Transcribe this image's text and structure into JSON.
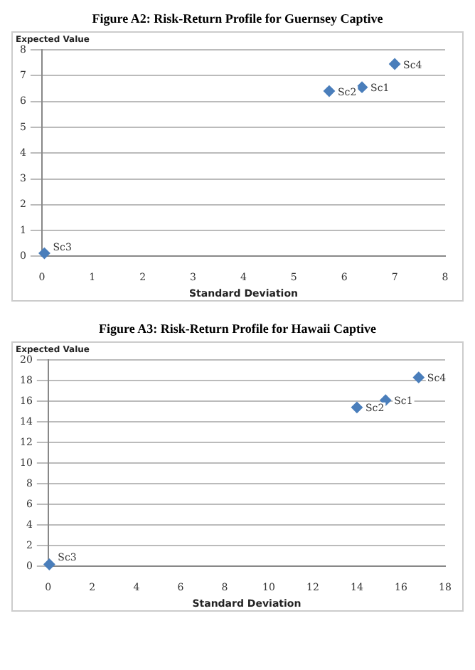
{
  "chart_data": [
    {
      "type": "scatter",
      "title": "Figure A2: Risk-Return Profile for Guernsey Captive",
      "xlabel": "Standard Deviation",
      "ylabel": "Expected Value",
      "x": [
        6.35,
        5.7,
        0.05,
        7.0
      ],
      "values": [
        6.55,
        6.4,
        0.12,
        7.45
      ],
      "color": "#4a7ebb",
      "marker": "diamond",
      "xlim": [
        0,
        8
      ],
      "xticks": [
        0,
        1,
        2,
        3,
        4,
        5,
        6,
        7,
        8
      ],
      "ylim": [
        0,
        8
      ],
      "yticks": [
        0,
        1,
        2,
        3,
        4,
        5,
        6,
        7,
        8
      ],
      "grid": "y",
      "annotations": [
        {
          "text": "Sc1",
          "x": 6.35,
          "y": 6.55
        },
        {
          "text": "Sc2",
          "x": 5.7,
          "y": 6.4
        },
        {
          "text": "Sc3",
          "x": 0.05,
          "y": 0.12
        },
        {
          "text": "Sc4",
          "x": 7.0,
          "y": 7.45
        }
      ]
    },
    {
      "type": "scatter",
      "title": "Figure A3: Risk-Return Profile for Hawaii Captive",
      "xlabel": "Standard Deviation",
      "ylabel": "Expected Value",
      "x": [
        15.3,
        14.0,
        0.05,
        16.8
      ],
      "values": [
        16.1,
        15.4,
        0.2,
        18.3
      ],
      "color": "#4a7ebb",
      "marker": "diamond",
      "xlim": [
        0,
        18
      ],
      "xticks": [
        0,
        2,
        4,
        6,
        8,
        10,
        12,
        14,
        16,
        18
      ],
      "ylim": [
        0,
        20
      ],
      "yticks": [
        0,
        2,
        4,
        6,
        8,
        10,
        12,
        14,
        16,
        18,
        20
      ],
      "grid": "y",
      "annotations": [
        {
          "text": "Sc1",
          "x": 15.3,
          "y": 16.1
        },
        {
          "text": "Sc2",
          "x": 14.0,
          "y": 15.4
        },
        {
          "text": "Sc3",
          "x": 0.05,
          "y": 0.2
        },
        {
          "text": "Sc4",
          "x": 16.8,
          "y": 18.3
        }
      ]
    }
  ]
}
